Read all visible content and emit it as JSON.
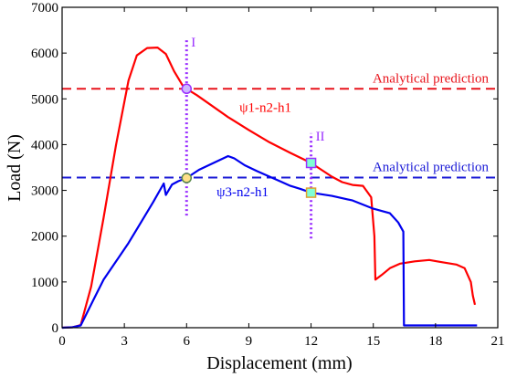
{
  "chart_data": {
    "type": "line",
    "title": "",
    "xlabel": "Displacement (mm)",
    "ylabel": "Load (N)",
    "xlim": [
      0,
      21
    ],
    "ylim": [
      0,
      7000
    ],
    "xticks": [
      0,
      3,
      6,
      9,
      12,
      15,
      18,
      21
    ],
    "yticks": [
      0,
      1000,
      2000,
      3000,
      4000,
      5000,
      6000,
      7000
    ],
    "grid": false,
    "series": [
      {
        "name": "ψ1-n2-h1",
        "color": "#ff0000",
        "points": [
          [
            0,
            0
          ],
          [
            0.5,
            10
          ],
          [
            0.9,
            60
          ],
          [
            1.4,
            900
          ],
          [
            2.0,
            2400
          ],
          [
            2.6,
            4000
          ],
          [
            3.2,
            5400
          ],
          [
            3.6,
            5950
          ],
          [
            4.1,
            6110
          ],
          [
            4.6,
            6120
          ],
          [
            5.0,
            5980
          ],
          [
            5.4,
            5600
          ],
          [
            5.8,
            5300
          ],
          [
            6.0,
            5220
          ],
          [
            6.5,
            5080
          ],
          [
            7.0,
            4920
          ],
          [
            8.0,
            4600
          ],
          [
            9.0,
            4320
          ],
          [
            10.0,
            4050
          ],
          [
            11.0,
            3820
          ],
          [
            12.0,
            3600
          ],
          [
            12.5,
            3450
          ],
          [
            13.0,
            3300
          ],
          [
            13.5,
            3180
          ],
          [
            14.0,
            3120
          ],
          [
            14.5,
            3100
          ],
          [
            14.9,
            2850
          ],
          [
            15.05,
            2000
          ],
          [
            15.1,
            1050
          ],
          [
            15.4,
            1150
          ],
          [
            15.8,
            1300
          ],
          [
            16.3,
            1400
          ],
          [
            17.0,
            1450
          ],
          [
            17.7,
            1480
          ],
          [
            18.2,
            1440
          ],
          [
            19.0,
            1380
          ],
          [
            19.4,
            1300
          ],
          [
            19.7,
            1000
          ],
          [
            19.8,
            700
          ],
          [
            19.9,
            500
          ]
        ]
      },
      {
        "name": "ψ3-n2-h1",
        "color": "#0000ee",
        "points": [
          [
            0,
            0
          ],
          [
            0.5,
            10
          ],
          [
            0.9,
            50
          ],
          [
            1.5,
            600
          ],
          [
            2.0,
            1050
          ],
          [
            2.6,
            1450
          ],
          [
            3.2,
            1850
          ],
          [
            3.8,
            2300
          ],
          [
            4.4,
            2750
          ],
          [
            4.9,
            3150
          ],
          [
            5.0,
            2900
          ],
          [
            5.3,
            3130
          ],
          [
            5.6,
            3200
          ],
          [
            6.0,
            3270
          ],
          [
            6.6,
            3450
          ],
          [
            7.3,
            3600
          ],
          [
            8.0,
            3750
          ],
          [
            8.3,
            3700
          ],
          [
            8.8,
            3550
          ],
          [
            9.4,
            3420
          ],
          [
            10.0,
            3300
          ],
          [
            10.5,
            3200
          ],
          [
            11.0,
            3100
          ],
          [
            11.5,
            3030
          ],
          [
            12.0,
            2950
          ],
          [
            13.0,
            2880
          ],
          [
            14.0,
            2780
          ],
          [
            15.0,
            2600
          ],
          [
            15.8,
            2500
          ],
          [
            16.2,
            2300
          ],
          [
            16.45,
            2100
          ],
          [
            16.48,
            50
          ],
          [
            17.5,
            50
          ],
          [
            19.0,
            50
          ],
          [
            20.0,
            50
          ]
        ]
      }
    ],
    "reference_lines": [
      {
        "label": "Analytical prediction",
        "y": 5220,
        "color": "#e8141c"
      },
      {
        "label": "Analytical prediction",
        "y": 3280,
        "color": "#1a1ad6"
      }
    ],
    "vertical_markers": [
      {
        "label": "I",
        "x": 6,
        "y_from": 2450,
        "y_to": 6300,
        "color": "#9b30ff"
      },
      {
        "label": "II",
        "x": 12,
        "y_from": 1950,
        "y_to": 4250,
        "color": "#9b30ff"
      }
    ],
    "marker_points": [
      {
        "x": 6,
        "y": 5220,
        "shape": "circle",
        "fill": "#cdb7ff",
        "stroke": "#9b30ff"
      },
      {
        "x": 6,
        "y": 3270,
        "shape": "circle",
        "fill": "#ffe08a",
        "stroke": "#5a8a4a"
      },
      {
        "x": 12,
        "y": 3600,
        "shape": "square",
        "fill": "#7fffd4",
        "stroke": "#9b30ff"
      },
      {
        "x": 12,
        "y": 2950,
        "shape": "square",
        "fill": "#7fffd4",
        "stroke": "#e0a030"
      }
    ],
    "series_labels": [
      {
        "text": "ψ1-n2-h1",
        "x": 9.8,
        "y": 4720,
        "color": "#ff0000"
      },
      {
        "text": "ψ3-n2-h1",
        "x": 8.7,
        "y": 2870,
        "color": "#0000ee"
      }
    ]
  }
}
